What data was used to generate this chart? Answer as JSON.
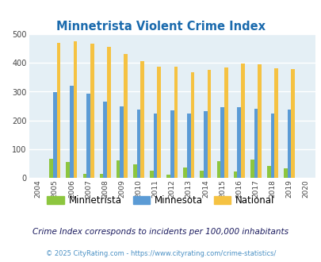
{
  "title": "Minnetrista Violent Crime Index",
  "years": [
    2004,
    2005,
    2006,
    2007,
    2008,
    2009,
    2010,
    2011,
    2012,
    2013,
    2014,
    2015,
    2016,
    2017,
    2018,
    2019,
    2020
  ],
  "minnetrista": [
    0,
    68,
    55,
    14,
    15,
    62,
    49,
    27,
    11,
    38,
    27,
    58,
    22,
    65,
    42,
    33,
    0
  ],
  "minnesota": [
    0,
    298,
    320,
    293,
    265,
    249,
    238,
    224,
    234,
    224,
    232,
    246,
    246,
    241,
    224,
    237,
    0
  ],
  "national": [
    0,
    469,
    474,
    467,
    455,
    432,
    405,
    387,
    387,
    368,
    376,
    384,
    397,
    394,
    381,
    379,
    0
  ],
  "color_minnetrista": "#8dc63f",
  "color_minnesota": "#5b9bd5",
  "color_national": "#f5c242",
  "bg_color": "#e4eff5",
  "ylim": [
    0,
    500
  ],
  "yticks": [
    0,
    100,
    200,
    300,
    400,
    500
  ],
  "subtitle": "Crime Index corresponds to incidents per 100,000 inhabitants",
  "footer": "© 2025 CityRating.com - https://www.cityrating.com/crime-statistics/",
  "title_color": "#1a6aad",
  "subtitle_color": "#1a1a5e",
  "footer_color": "#4a90c4"
}
